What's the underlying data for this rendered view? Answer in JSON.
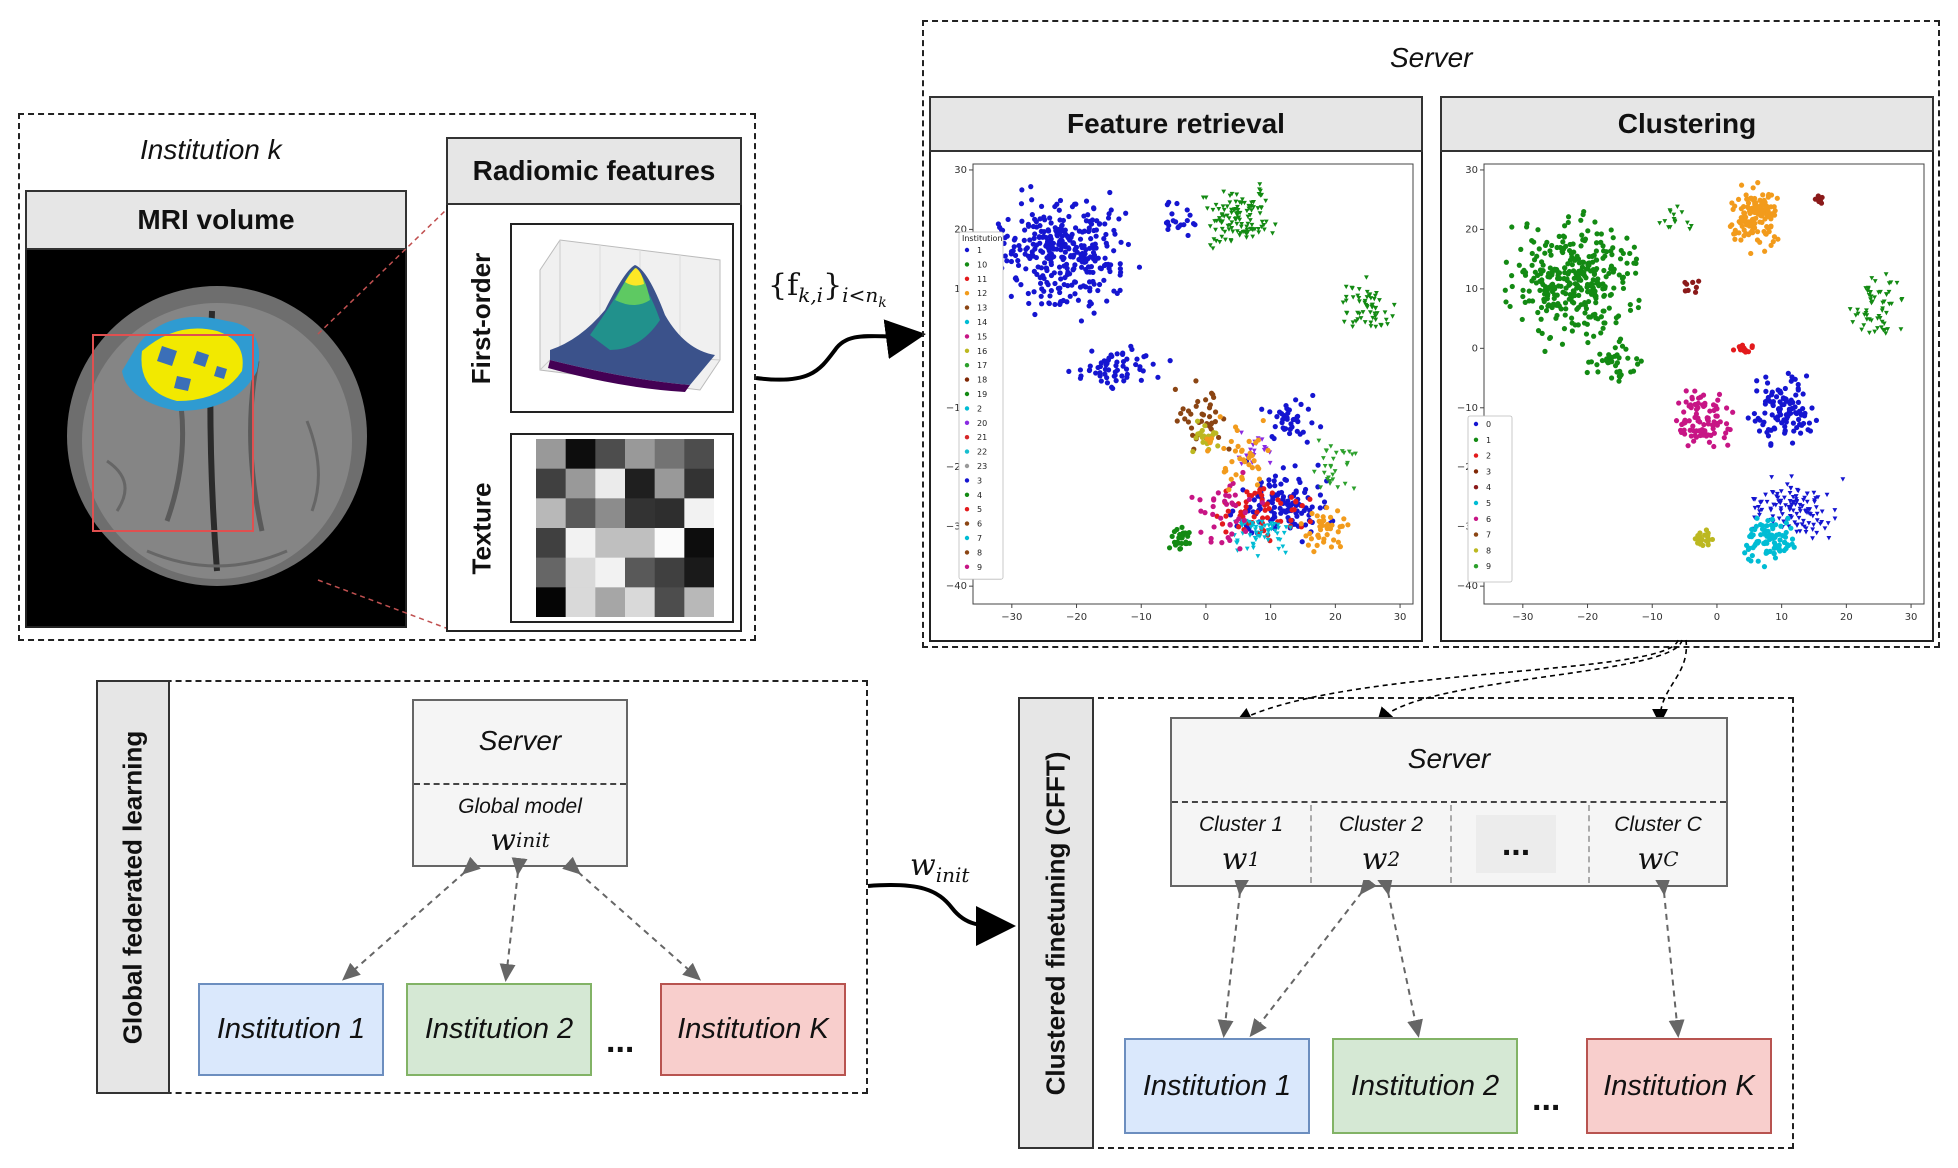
{
  "institution_panel": {
    "title": "Institution k",
    "mri_header": "MRI volume",
    "radiomic_header": "Radiomic features",
    "first_order_label": "First-order",
    "texture_label": "Texture"
  },
  "features_formula": "{f",
  "features_sub": "k,i",
  "features_close": "}",
  "features_index": "i<n",
  "features_index_sub": "k",
  "server_panel": {
    "title": "Server",
    "retrieval_header": "Feature retrieval",
    "clustering_header": "Clustering"
  },
  "global_fl": {
    "side_label": "Global federated learning",
    "server_label": "Server",
    "model_label": "Global model",
    "model_var": "w",
    "model_sub": "init",
    "institutions": [
      "Institution 1",
      "Institution 2",
      "Institution K"
    ],
    "ellipsis": "..."
  },
  "winit_arrow": {
    "var": "w",
    "sub": "init"
  },
  "cfft": {
    "side_label": "Clustered finetuning (CFFT)",
    "server_label": "Server",
    "clusters": [
      {
        "label": "Cluster 1",
        "var": "w",
        "sub": "1"
      },
      {
        "label": "Cluster 2",
        "var": "w",
        "sub": "2"
      },
      {
        "label": "",
        "var": "...",
        "sub": ""
      },
      {
        "label": "Cluster C",
        "var": "w",
        "sub": "C"
      }
    ],
    "institutions": [
      "Institution 1",
      "Institution 2",
      "Institution K"
    ],
    "ellipsis": "..."
  },
  "retrieval_legend_title": "Institution",
  "retrieval_legend": [
    "1",
    "10",
    "11",
    "12",
    "13",
    "14",
    "15",
    "16",
    "17",
    "18",
    "19",
    "2",
    "20",
    "21",
    "22",
    "23",
    "3",
    "4",
    "5",
    "6",
    "7",
    "8",
    "9"
  ],
  "clustering_legend": [
    "0",
    "1",
    "2",
    "3",
    "4",
    "5",
    "6",
    "7",
    "8",
    "9"
  ],
  "x_ticks": [
    "−30",
    "−20",
    "−10",
    "0",
    "10",
    "20",
    "30"
  ],
  "y_ticks": [
    "30",
    "20",
    "10",
    "0",
    "−10",
    "−20",
    "−30",
    "−40"
  ],
  "colors": {
    "blue_box": "#dae8fc",
    "blue_border": "#6c8ebf",
    "green_box": "#d5e8d4",
    "green_border": "#82b366",
    "red_box": "#f8cecc",
    "red_border": "#b85450",
    "header_gray": "#e6e6e6",
    "server_gray": "#f5f5f5"
  }
}
